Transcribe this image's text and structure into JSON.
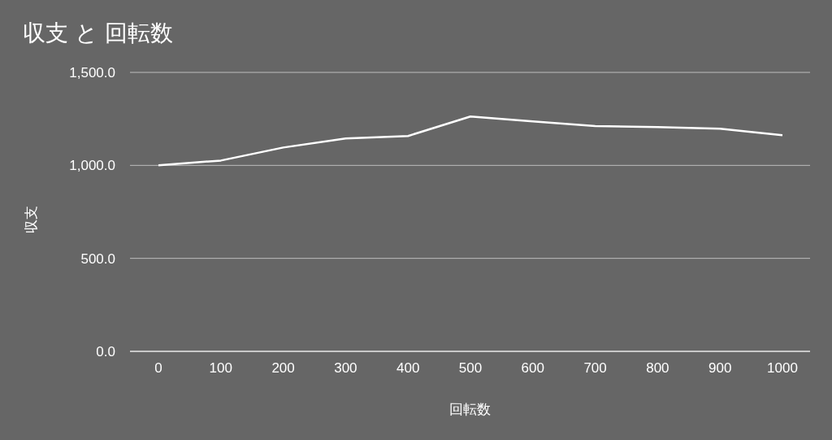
{
  "chart_data": {
    "type": "line",
    "title": "収支 と 回転数",
    "xlabel": "回転数",
    "ylabel": "収支",
    "categories": [
      "0",
      "100",
      "200",
      "300",
      "400",
      "500",
      "600",
      "700",
      "800",
      "900",
      "1000"
    ],
    "series": [
      {
        "color": "#ffffff",
        "values": [
          1000,
          1026,
          1096,
          1145,
          1158,
          1263,
          1237,
          1211,
          1206,
          1197,
          1162
        ]
      }
    ],
    "ylim": [
      0,
      1500
    ],
    "yticks": [
      {
        "value": 0,
        "label": "0.0"
      },
      {
        "value": 500,
        "label": "500.0"
      },
      {
        "value": 1000,
        "label": "1,000.0"
      },
      {
        "value": 1500,
        "label": "1,500.0"
      }
    ],
    "grid": "y",
    "marker": "none",
    "line_style": "solid",
    "legend": false
  }
}
